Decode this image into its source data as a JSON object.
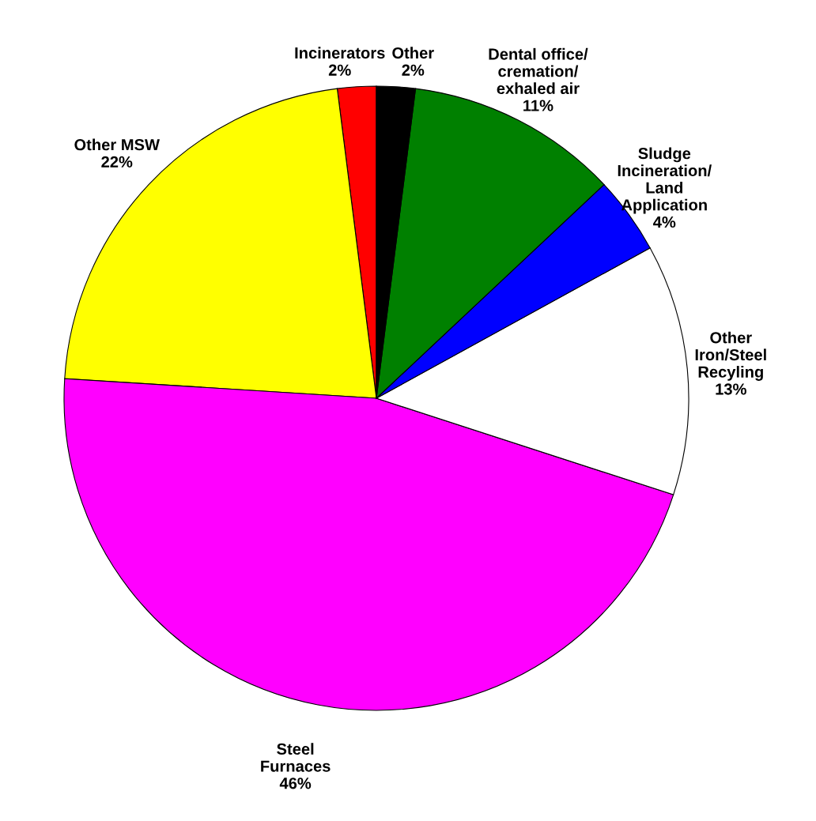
{
  "chart_data": {
    "type": "pie",
    "categories": [
      "Incinerators",
      "Other MSW",
      "Steel\nFurnaces",
      "Other\nIron/Steel\nRecyling",
      "Sludge\nIncineration/\nLand\nApplication",
      "Dental office/\ncremation/\nexhaled air",
      "Other"
    ],
    "values": [
      2,
      22,
      46,
      13,
      4,
      11,
      2
    ],
    "value_labels": [
      "2%",
      "22%",
      "46%",
      "13%",
      "4%",
      "11%",
      "2%"
    ],
    "colors": [
      "#ff0000",
      "#ffff00",
      "#ff00ff",
      "#ffffff",
      "#0000ff",
      "#008000",
      "#000000"
    ]
  }
}
